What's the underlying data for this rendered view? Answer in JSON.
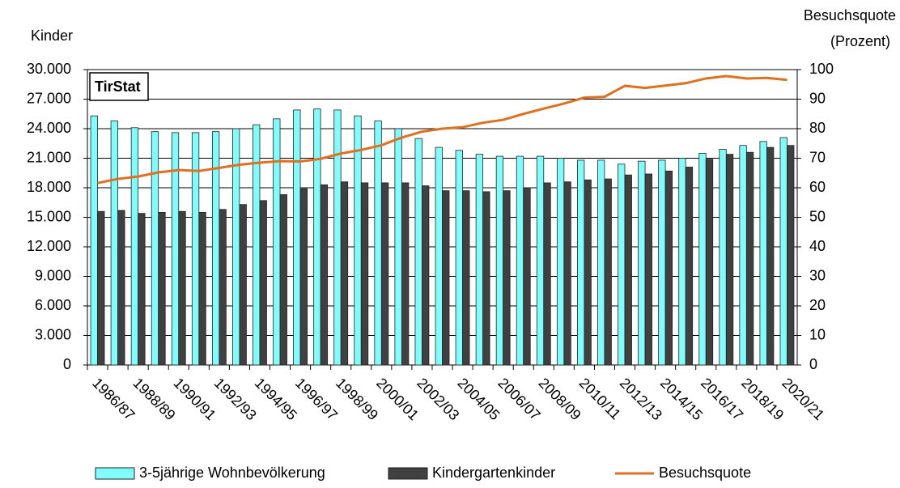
{
  "chart_data": {
    "type": "bar-line",
    "y_label": "Kinder",
    "y2_label": [
      "Besuchsquote",
      "(Prozent)"
    ],
    "annotation": "TirStat",
    "categories": [
      "1986/87",
      null,
      "1988/89",
      null,
      "1990/91",
      null,
      "1992/93",
      null,
      "1994/95",
      null,
      "1996/97",
      null,
      "1998/99",
      null,
      "2000/01",
      null,
      "2002/03",
      null,
      "2004/05",
      null,
      "2006/07",
      null,
      "2008/09",
      null,
      "2010/11",
      null,
      "2012/13",
      null,
      "2014/15",
      null,
      "2016/17",
      null,
      "2018/19",
      null,
      "2020/21"
    ],
    "series": [
      {
        "name": "3-5jährige Wohnbevölkerung",
        "color": "#7ffcfc",
        "kind": "bar",
        "values": [
          25300,
          24800,
          24100,
          23700,
          23600,
          23600,
          23700,
          24000,
          24400,
          25000,
          25900,
          26000,
          25900,
          25300,
          24800,
          24000,
          23000,
          22100,
          21800,
          21400,
          21200,
          21200,
          21200,
          21000,
          20800,
          20800,
          20400,
          20700,
          20800,
          21000,
          21500,
          21900,
          22300,
          22700,
          23100
        ]
      },
      {
        "name": "Kindergartenkinder",
        "color": "#404040",
        "kind": "bar",
        "values": [
          15600,
          15700,
          15400,
          15500,
          15600,
          15500,
          15800,
          16300,
          16700,
          17300,
          17900,
          18300,
          18600,
          18500,
          18500,
          18500,
          18200,
          17700,
          17700,
          17600,
          17700,
          18000,
          18500,
          18600,
          18800,
          18900,
          19300,
          19400,
          19700,
          20100,
          20900,
          21400,
          21600,
          22100,
          22300
        ]
      },
      {
        "name": "Besuchsquote",
        "color": "#e07020",
        "kind": "line",
        "axis": "y2",
        "values": [
          61.6,
          63,
          63.8,
          65.2,
          66,
          65.7,
          66.7,
          67.8,
          68.5,
          69,
          68.9,
          69.8,
          71.6,
          72.8,
          74.4,
          77,
          79,
          80,
          80.5,
          82,
          83,
          85,
          86.8,
          88.5,
          90.5,
          90.8,
          94.5,
          93.8,
          94.6,
          95.4,
          97,
          97.8,
          97,
          97.2,
          96.5
        ]
      }
    ],
    "ylim": [
      0,
      30000
    ],
    "yticks": [
      0,
      {
        "value": 3000,
        "label": "3.000"
      },
      {
        "value": 6000,
        "label": "6.000"
      },
      {
        "value": 9000,
        "label": "9.000"
      },
      {
        "value": 12000,
        "label": "12.000"
      },
      {
        "value": 15000,
        "label": "15.000"
      },
      {
        "value": 18000,
        "label": "18.000"
      },
      {
        "value": 21000,
        "label": "21.000"
      },
      {
        "value": 24000,
        "label": "24.000"
      },
      {
        "value": 27000,
        "label": "27.000"
      },
      {
        "value": 30000,
        "label": "30.000"
      }
    ],
    "y2lim": [
      0,
      100
    ],
    "y2ticks": [
      0,
      10,
      20,
      30,
      40,
      50,
      60,
      70,
      80,
      90,
      100
    ],
    "grid": true,
    "legend": "bottom"
  }
}
